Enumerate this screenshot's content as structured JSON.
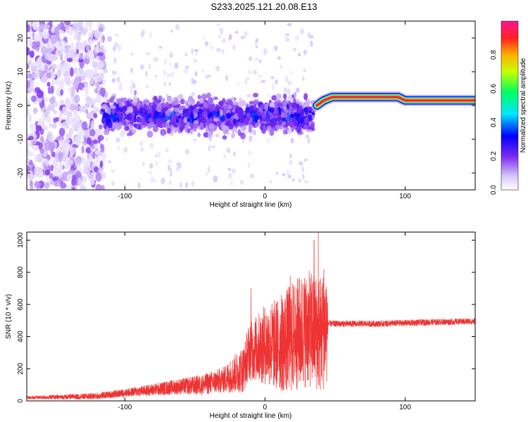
{
  "title": "S233.2025.121.20.08.E13",
  "chart_data": [
    {
      "type": "heatmap",
      "xlabel": "Height of straight line (km)",
      "ylabel": "Frequency (Hz)",
      "xlim": [
        -170,
        150
      ],
      "ylim": [
        -25,
        25
      ],
      "x_ticks": [
        "-100",
        "0",
        "100"
      ],
      "x_tick_values": [
        -100,
        0,
        100
      ],
      "y_ticks": [
        "20",
        "10",
        "0",
        "-10",
        "-20"
      ],
      "y_tick_values": [
        20,
        10,
        0,
        -10,
        -20
      ],
      "colorbar": {
        "label": "Normalized spectral amplitude",
        "range": [
          0,
          1
        ],
        "ticks": [
          "0.0",
          "0.2",
          "0.4",
          "0.6",
          "0.8"
        ],
        "tick_values": [
          0.0,
          0.2,
          0.4,
          0.6,
          0.8
        ],
        "colormap": [
          "#ffffff",
          "#d8c8f8",
          "#7a28f0",
          "#0000ff",
          "#00e8ff",
          "#00ff60",
          "#c8ff00",
          "#ffb000",
          "#ff2020",
          "#ff1493"
        ]
      },
      "features": [
        {
          "region": [
            -170,
            -115
          ],
          "frequency_spread_hz": 25,
          "amplitude": "low (0.05-0.2)",
          "description_is_layout": false
        },
        {
          "region": [
            -115,
            35
          ],
          "frequency_center_hz": -3,
          "frequency_spread_hz": 7,
          "amplitude": "0.1-0.35"
        },
        {
          "region": [
            35,
            150
          ],
          "frequency_center_hz": 2,
          "amplitude": "0.9-1.0",
          "band_trace_hz": [
            [
              37,
              0
            ],
            [
              42,
              1.5
            ],
            [
              48,
              2.5
            ],
            [
              95,
              2.5
            ],
            [
              100,
              1.5
            ],
            [
              150,
              1.5
            ]
          ]
        }
      ]
    },
    {
      "type": "line",
      "xlabel": "Height of straight line (km)",
      "ylabel": "SNR (10 * v/v)",
      "xlim": [
        -170,
        150
      ],
      "ylim": [
        0,
        1050
      ],
      "x_ticks": [
        "-100",
        "0",
        "100"
      ],
      "x_tick_values": [
        -100,
        0,
        100
      ],
      "y_ticks": [
        "0",
        "200",
        "400",
        "600",
        "800",
        "1000"
      ],
      "y_tick_values": [
        0,
        200,
        400,
        600,
        800,
        1000
      ],
      "color": "#ee3333",
      "series": [
        {
          "values_description_points": [
            [
              -170,
              20
            ],
            [
              -140,
              25
            ],
            [
              -120,
              30
            ],
            [
              -100,
              50
            ],
            [
              -80,
              70
            ],
            [
              -60,
              90
            ],
            [
              -45,
              100
            ],
            [
              -30,
              130
            ],
            [
              -15,
              200
            ],
            [
              -12,
              300
            ],
            [
              0,
              350
            ],
            [
              10,
              350
            ],
            [
              20,
              400
            ],
            [
              30,
              450
            ],
            [
              40,
              420
            ],
            [
              45,
              480
            ],
            [
              60,
              480
            ],
            [
              80,
              480
            ],
            [
              100,
              485
            ],
            [
              120,
              490
            ],
            [
              150,
              495
            ]
          ],
          "noise_amplitude": [
            [
              -170,
              10
            ],
            [
              -100,
              25
            ],
            [
              -60,
              50
            ],
            [
              -30,
              80
            ],
            [
              -15,
              150
            ],
            [
              0,
              250
            ],
            [
              20,
              350
            ],
            [
              44,
              380
            ],
            [
              45,
              20
            ],
            [
              150,
              20
            ]
          ],
          "peaks": [
            [
              -10,
              700
            ],
            [
              18,
              780
            ],
            [
              35,
              1000
            ],
            [
              38,
              1050
            ],
            [
              42,
              820
            ]
          ]
        }
      ]
    }
  ]
}
